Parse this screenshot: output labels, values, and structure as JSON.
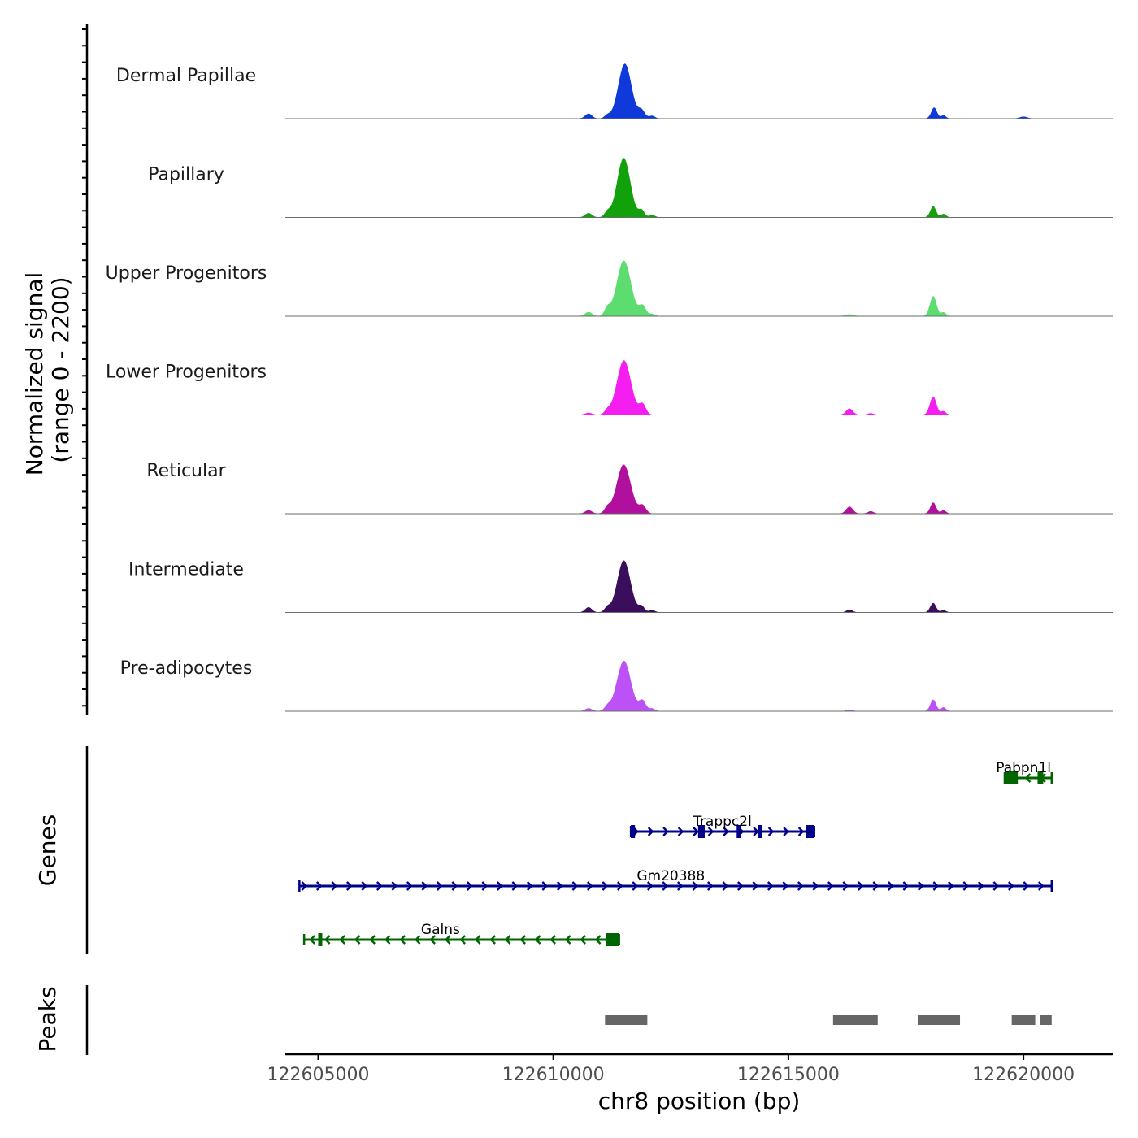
{
  "chart_data": {
    "type": "area",
    "title": "",
    "chromosome": "chr8",
    "xlabel": "chr8 position (bp)",
    "ylabel": "Normalized signal",
    "ylabel_range": "(range 0 - 2200)",
    "ylim": [
      0,
      2200
    ],
    "xlim": [
      122604300,
      122621900
    ],
    "x_ticks": [
      122605000,
      122610000,
      122615000,
      122620000
    ],
    "x_tick_labels": [
      "122605000",
      "122610000",
      "122615000",
      "122620000"
    ],
    "genes_label": "Genes",
    "peaks_label": "Peaks",
    "series": [
      {
        "name": "Dermal Papillae",
        "color": "#1039d9",
        "peaks": [
          {
            "x": 122611520,
            "y": 2050,
            "w": 140
          },
          {
            "x": 122611880,
            "y": 280,
            "w": 70
          },
          {
            "x": 122610750,
            "y": 190,
            "w": 70
          },
          {
            "x": 122611150,
            "y": 120,
            "w": 60
          },
          {
            "x": 122612100,
            "y": 100,
            "w": 60
          },
          {
            "x": 122618100,
            "y": 420,
            "w": 60
          },
          {
            "x": 122618300,
            "y": 120,
            "w": 50
          },
          {
            "x": 122620000,
            "y": 70,
            "w": 80
          }
        ]
      },
      {
        "name": "Papillary",
        "color": "#12a10b",
        "peaks": [
          {
            "x": 122611500,
            "y": 2200,
            "w": 140
          },
          {
            "x": 122611880,
            "y": 260,
            "w": 60
          },
          {
            "x": 122610750,
            "y": 160,
            "w": 70
          },
          {
            "x": 122611150,
            "y": 180,
            "w": 60
          },
          {
            "x": 122612100,
            "y": 90,
            "w": 60
          },
          {
            "x": 122618080,
            "y": 430,
            "w": 60
          },
          {
            "x": 122618300,
            "y": 130,
            "w": 50
          }
        ]
      },
      {
        "name": "Upper Progenitors",
        "color": "#5ddc6f",
        "peaks": [
          {
            "x": 122611500,
            "y": 2150,
            "w": 150
          },
          {
            "x": 122611900,
            "y": 380,
            "w": 70
          },
          {
            "x": 122610750,
            "y": 150,
            "w": 70
          },
          {
            "x": 122611150,
            "y": 280,
            "w": 60
          },
          {
            "x": 122612100,
            "y": 80,
            "w": 60
          },
          {
            "x": 122616300,
            "y": 60,
            "w": 80
          },
          {
            "x": 122618080,
            "y": 720,
            "w": 70
          },
          {
            "x": 122618300,
            "y": 140,
            "w": 50
          }
        ]
      },
      {
        "name": "Lower Progenitors",
        "color": "#f51ef0",
        "peaks": [
          {
            "x": 122611500,
            "y": 2000,
            "w": 150
          },
          {
            "x": 122611900,
            "y": 380,
            "w": 70
          },
          {
            "x": 122610750,
            "y": 80,
            "w": 70
          },
          {
            "x": 122611150,
            "y": 150,
            "w": 60
          },
          {
            "x": 122616300,
            "y": 240,
            "w": 70
          },
          {
            "x": 122616750,
            "y": 60,
            "w": 60
          },
          {
            "x": 122618080,
            "y": 700,
            "w": 70
          },
          {
            "x": 122618300,
            "y": 140,
            "w": 50
          }
        ]
      },
      {
        "name": "Reticular",
        "color": "#b0109d",
        "peaks": [
          {
            "x": 122611500,
            "y": 1850,
            "w": 150
          },
          {
            "x": 122611900,
            "y": 300,
            "w": 70
          },
          {
            "x": 122610750,
            "y": 120,
            "w": 70
          },
          {
            "x": 122611150,
            "y": 200,
            "w": 60
          },
          {
            "x": 122616300,
            "y": 260,
            "w": 70
          },
          {
            "x": 122616750,
            "y": 80,
            "w": 60
          },
          {
            "x": 122618080,
            "y": 420,
            "w": 60
          },
          {
            "x": 122618300,
            "y": 120,
            "w": 50
          }
        ]
      },
      {
        "name": "Intermediate",
        "color": "#3a0e5c",
        "peaks": [
          {
            "x": 122611500,
            "y": 2000,
            "w": 140
          },
          {
            "x": 122611880,
            "y": 220,
            "w": 60
          },
          {
            "x": 122610750,
            "y": 190,
            "w": 70
          },
          {
            "x": 122611150,
            "y": 180,
            "w": 60
          },
          {
            "x": 122612100,
            "y": 80,
            "w": 60
          },
          {
            "x": 122616300,
            "y": 100,
            "w": 60
          },
          {
            "x": 122618080,
            "y": 340,
            "w": 60
          },
          {
            "x": 122618300,
            "y": 80,
            "w": 50
          }
        ]
      },
      {
        "name": "Pre-adipocytes",
        "color": "#bc52f5",
        "peaks": [
          {
            "x": 122611500,
            "y": 1800,
            "w": 150
          },
          {
            "x": 122611900,
            "y": 380,
            "w": 70
          },
          {
            "x": 122610750,
            "y": 110,
            "w": 70
          },
          {
            "x": 122611150,
            "y": 160,
            "w": 60
          },
          {
            "x": 122612100,
            "y": 100,
            "w": 60
          },
          {
            "x": 122616300,
            "y": 60,
            "w": 60
          },
          {
            "x": 122618080,
            "y": 450,
            "w": 60
          },
          {
            "x": 122618300,
            "y": 150,
            "w": 50
          }
        ]
      }
    ],
    "genes": [
      {
        "name": "Pabpn1l",
        "strand": "-",
        "color": "#006400",
        "start": 122619600,
        "end": 122620600,
        "row": 0,
        "exons": [
          [
            122619600,
            122619880
          ],
          [
            122620300,
            122620420
          ]
        ],
        "label_x": 122620000
      },
      {
        "name": "Trappc2l",
        "strand": "+",
        "color": "#00008b",
        "start": 122611650,
        "end": 122615550,
        "row": 1,
        "exons": [
          [
            122611650,
            122611700
          ],
          [
            122613080,
            122613220
          ],
          [
            122613900,
            122613950
          ],
          [
            122614350,
            122614400
          ],
          [
            122615380,
            122615550
          ]
        ],
        "label_x": 122613600
      },
      {
        "name": "Gm20388",
        "strand": "+",
        "color": "#00008b",
        "start": 122604600,
        "end": 122620600,
        "row": 2,
        "exons": [],
        "label_x": 122612500
      },
      {
        "name": "Galns",
        "strand": "-",
        "color": "#006400",
        "start": 122604700,
        "end": 122611400,
        "row": 3,
        "exons": [
          [
            122605000,
            122605080
          ],
          [
            122611120,
            122611400
          ]
        ],
        "label_x": 122607600
      }
    ],
    "peak_regions": [
      [
        122611100,
        122612000
      ],
      [
        122615950,
        122616900
      ],
      [
        122617750,
        122618650
      ],
      [
        122619750,
        122620250
      ],
      [
        122620350,
        122620600
      ]
    ]
  }
}
